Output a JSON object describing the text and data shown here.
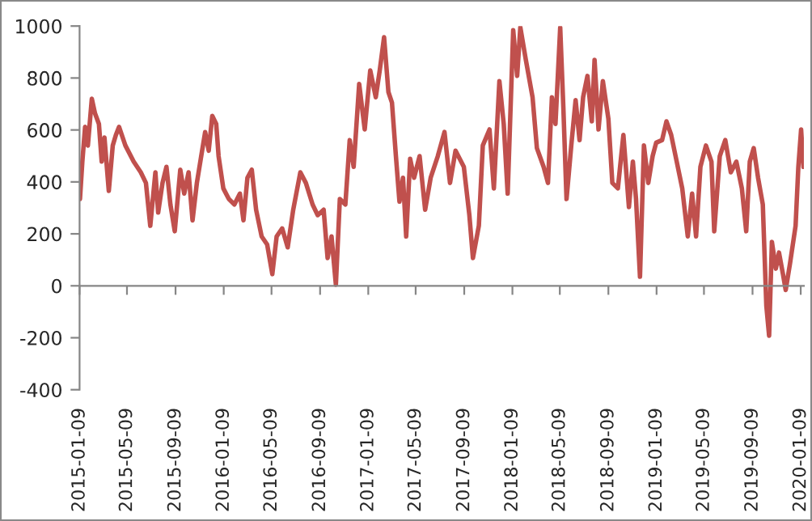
{
  "chart_data": {
    "type": "line",
    "x": [
      "2015-01-10",
      "2015-01-16",
      "2015-01-23",
      "2015-01-30",
      "2015-02-09",
      "2015-02-17",
      "2015-02-27",
      "2015-03-06",
      "2015-03-13",
      "2015-03-24",
      "2015-04-03",
      "2015-04-11",
      "2015-04-19",
      "2015-05-05",
      "2015-05-26",
      "2015-06-13",
      "2015-06-26",
      "2015-07-07",
      "2015-07-20",
      "2015-07-27",
      "2015-08-07",
      "2015-08-17",
      "2015-08-27",
      "2015-09-07",
      "2015-09-21",
      "2015-10-01",
      "2015-10-12",
      "2015-10-22",
      "2015-11-02",
      "2015-11-13",
      "2015-11-23",
      "2015-12-02",
      "2015-12-11",
      "2015-12-21",
      "2015-12-27",
      "2016-01-08",
      "2016-01-22",
      "2016-02-05",
      "2016-02-19",
      "2016-02-28",
      "2016-03-09",
      "2016-03-20",
      "2016-03-31",
      "2016-04-14",
      "2016-04-28",
      "2016-05-11",
      "2016-05-22",
      "2016-06-05",
      "2016-06-19",
      "2016-07-03",
      "2016-07-21",
      "2016-08-04",
      "2016-08-21",
      "2016-09-03",
      "2016-09-18",
      "2016-09-28",
      "2016-10-08",
      "2016-10-19",
      "2016-10-29",
      "2016-11-12",
      "2016-11-23",
      "2016-12-03",
      "2016-12-17",
      "2016-12-31",
      "2017-01-14",
      "2017-01-28",
      "2017-02-07",
      "2017-02-18",
      "2017-03-01",
      "2017-03-10",
      "2017-03-20",
      "2017-03-29",
      "2017-04-07",
      "2017-04-15",
      "2017-04-25",
      "2017-05-05",
      "2017-05-19",
      "2017-06-02",
      "2017-06-16",
      "2017-07-04",
      "2017-07-21",
      "2017-08-04",
      "2017-08-18",
      "2017-09-08",
      "2017-09-22",
      "2017-10-01",
      "2017-10-16",
      "2017-10-26",
      "2017-11-12",
      "2017-11-23",
      "2017-12-07",
      "2017-12-18",
      "2017-12-28",
      "2018-01-11",
      "2018-01-21",
      "2018-01-29",
      "2018-02-12",
      "2018-03-01",
      "2018-03-12",
      "2018-03-29",
      "2018-04-09",
      "2018-04-19",
      "2018-04-28",
      "2018-05-10",
      "2018-05-18",
      "2018-05-26",
      "2018-06-07",
      "2018-06-18",
      "2018-06-28",
      "2018-07-07",
      "2018-07-18",
      "2018-07-29",
      "2018-08-05",
      "2018-08-15",
      "2018-08-26",
      "2018-09-09",
      "2018-09-19",
      "2018-10-03",
      "2018-10-17",
      "2018-10-31",
      "2018-11-10",
      "2018-11-18",
      "2018-11-28",
      "2018-12-08",
      "2018-12-19",
      "2018-12-30",
      "2019-01-08",
      "2019-01-23",
      "2019-02-03",
      "2019-02-15",
      "2019-03-01",
      "2019-03-15",
      "2019-03-29",
      "2019-04-09",
      "2019-04-19",
      "2019-04-30",
      "2019-05-14",
      "2019-05-28",
      "2019-06-04",
      "2019-06-18",
      "2019-07-02",
      "2019-07-16",
      "2019-07-30",
      "2019-08-13",
      "2019-08-24",
      "2019-09-02",
      "2019-09-12",
      "2019-09-23",
      "2019-10-05",
      "2019-10-14",
      "2019-10-21",
      "2019-10-28",
      "2019-11-07",
      "2019-11-15",
      "2019-11-25",
      "2019-12-02",
      "2019-12-13",
      "2019-12-27",
      "2020-01-03",
      "2020-01-10",
      "2020-01-16"
    ],
    "series": [
      {
        "color": "#c0504d",
        "values": [
          334,
          478,
          612,
          540,
          720,
          664,
          623,
          478,
          571,
          365,
          540,
          581,
          612,
          540,
          478,
          437,
          396,
          231,
          437,
          282,
          396,
          458,
          313,
          210,
          447,
          355,
          437,
          252,
          396,
          499,
          592,
          520,
          654,
          623,
          499,
          375,
          334,
          313,
          355,
          252,
          416,
          447,
          293,
          190,
          159,
          45,
          190,
          221,
          148,
          293,
          437,
          396,
          313,
          272,
          293,
          107,
          190,
          4,
          334,
          313,
          561,
          458,
          777,
          602,
          829,
          726,
          829,
          957,
          746,
          705,
          499,
          324,
          416,
          190,
          489,
          416,
          499,
          293,
          416,
          499,
          592,
          396,
          520,
          458,
          272,
          107,
          231,
          540,
          602,
          375,
          788,
          623,
          355,
          984,
          808,
          995,
          870,
          726,
          530,
          458,
          396,
          726,
          623,
          994,
          685,
          334,
          540,
          715,
          561,
          726,
          808,
          633,
          870,
          602,
          788,
          643,
          396,
          375,
          581,
          303,
          478,
          334,
          35,
          540,
          396,
          499,
          551,
          561,
          633,
          581,
          478,
          375,
          190,
          355,
          190,
          458,
          540,
          478,
          210,
          499,
          561,
          437,
          478,
          375,
          210,
          478,
          530,
          416,
          313,
          -78,
          -192,
          169,
          66,
          128,
          45,
          -16,
          87,
          231,
          458,
          602,
          458
        ]
      }
    ],
    "xlim": [
      "2015-01-09",
      "2020-01-17"
    ],
    "xticks": [
      "2015-01-09",
      "2015-05-09",
      "2015-09-09",
      "2016-01-09",
      "2016-05-09",
      "2016-09-09",
      "2017-01-09",
      "2017-05-09",
      "2017-09-09",
      "2018-01-09",
      "2018-05-09",
      "2018-09-09",
      "2019-01-09",
      "2019-05-09",
      "2019-09-09",
      "2020-01-09"
    ],
    "ylim": [
      -400,
      1000
    ],
    "yticks": [
      -400,
      -200,
      0,
      200,
      400,
      600,
      800,
      1000
    ]
  }
}
